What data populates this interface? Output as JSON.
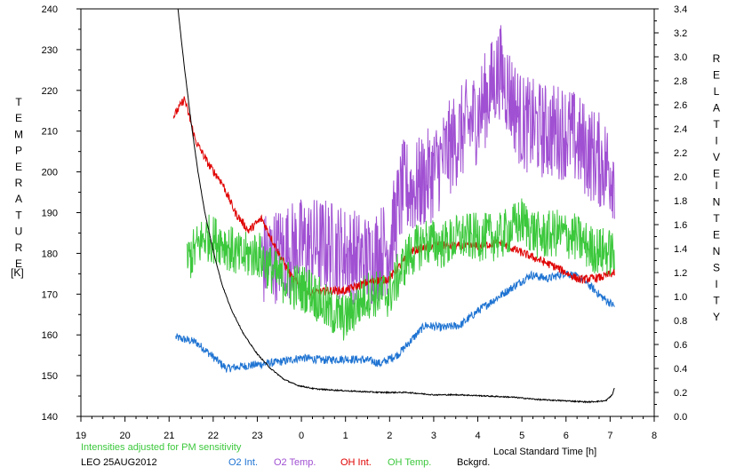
{
  "chart_data": {
    "type": "line",
    "xlabel": "Local Standard Time [h]",
    "ylabel_left": "TEMPERATURE",
    "ylabel_left_unit": "[K]",
    "ylabel_right": "RELATIVE INTENSITY",
    "x_ticks": [
      "19",
      "20",
      "21",
      "22",
      "23",
      "0",
      "1",
      "2",
      "3",
      "4",
      "5",
      "6",
      "7",
      "8"
    ],
    "xlim": [
      19,
      32
    ],
    "y_left_ticks": [
      "140",
      "150",
      "160",
      "170",
      "180",
      "190",
      "200",
      "210",
      "220",
      "230",
      "240"
    ],
    "ylim_left": [
      140,
      240
    ],
    "y_right_ticks": [
      "0.0",
      "0.2",
      "0.4",
      "0.6",
      "0.8",
      "1.0",
      "1.2",
      "1.4",
      "1.6",
      "1.8",
      "2.0",
      "2.2",
      "2.4",
      "2.6",
      "2.8",
      "3.0",
      "3.2",
      "3.4"
    ],
    "ylim_right": [
      0,
      3.4
    ],
    "note": "Intensities adjusted for PM sensitivity",
    "site_date": "LEO 25AUG2012",
    "legend_placement": "bottom",
    "series": [
      {
        "name": "O2 Int.",
        "axis": "right",
        "color": "#1e73d2",
        "noise": 0.035,
        "x": [
          21.15,
          21.6,
          21.8,
          22.3,
          22.7,
          23.2,
          23.6,
          24.0,
          24.5,
          25.0,
          25.5,
          25.8,
          26.2,
          26.5,
          26.8,
          27.2,
          27.6,
          28.0,
          28.4,
          28.8,
          29.2,
          29.6,
          30.0,
          30.4,
          30.8,
          31.1
        ],
        "y": [
          0.66,
          0.62,
          0.56,
          0.4,
          0.42,
          0.44,
          0.46,
          0.49,
          0.47,
          0.48,
          0.47,
          0.44,
          0.52,
          0.64,
          0.76,
          0.74,
          0.76,
          0.88,
          0.98,
          1.08,
          1.18,
          1.15,
          1.2,
          1.14,
          1.0,
          0.92
        ]
      },
      {
        "name": "O2 Temp.",
        "axis": "left",
        "color": "#a050d2",
        "noise": 12,
        "x": [
          23.1,
          23.5,
          24.0,
          24.5,
          25.0,
          25.5,
          26.0,
          26.3,
          26.6,
          27.0,
          27.5,
          28.0,
          28.5,
          29.0,
          29.5,
          30.0,
          30.5,
          31.1
        ],
        "y": [
          178,
          180,
          182,
          182,
          180,
          178,
          182,
          196,
          196,
          200,
          208,
          214,
          225,
          212,
          210,
          210,
          205,
          200
        ]
      },
      {
        "name": "OH Int.",
        "axis": "right",
        "color": "#e00000",
        "noise": 0.035,
        "x": [
          21.1,
          21.35,
          21.6,
          21.9,
          22.2,
          22.5,
          22.8,
          23.1,
          23.5,
          23.8,
          24.2,
          24.6,
          25.0,
          25.5,
          26.0,
          26.5,
          27.0,
          27.5,
          28.0,
          28.5,
          28.9,
          29.3,
          29.8,
          30.3,
          30.8,
          31.1
        ],
        "y": [
          2.5,
          2.65,
          2.3,
          2.1,
          1.95,
          1.7,
          1.55,
          1.65,
          1.35,
          1.15,
          1.02,
          1.05,
          1.05,
          1.12,
          1.15,
          1.38,
          1.43,
          1.42,
          1.42,
          1.45,
          1.38,
          1.32,
          1.24,
          1.14,
          1.16,
          1.2
        ]
      },
      {
        "name": "OH Temp.",
        "axis": "left",
        "color": "#3cc83c",
        "noise": 6,
        "x": [
          21.4,
          21.8,
          22.2,
          22.6,
          23.0,
          23.4,
          23.8,
          24.2,
          24.6,
          25.0,
          25.5,
          26.0,
          26.4,
          26.8,
          27.2,
          27.6,
          28.0,
          28.5,
          29.0,
          29.4,
          29.8,
          30.2,
          30.6,
          31.1
        ],
        "y": [
          178,
          184,
          183,
          179,
          180,
          175,
          172,
          171,
          166,
          164,
          170,
          170,
          179,
          183,
          182,
          184,
          184,
          184,
          188,
          184,
          185,
          184,
          181,
          180
        ]
      },
      {
        "name": "Bckgrd.",
        "axis": "right",
        "color": "#000000",
        "noise": 0.005,
        "x": [
          21.2,
          21.35,
          21.5,
          21.65,
          21.8,
          22.0,
          22.2,
          22.4,
          22.7,
          23.0,
          23.3,
          23.6,
          23.9,
          24.3,
          24.7,
          25.2,
          25.8,
          26.4,
          27.0,
          27.6,
          28.2,
          28.8,
          29.4,
          30.0,
          30.5,
          30.9,
          31.05,
          31.1
        ],
        "y": [
          3.4,
          2.9,
          2.45,
          2.05,
          1.72,
          1.38,
          1.1,
          0.9,
          0.68,
          0.52,
          0.4,
          0.31,
          0.26,
          0.23,
          0.22,
          0.21,
          0.2,
          0.2,
          0.18,
          0.18,
          0.17,
          0.16,
          0.14,
          0.13,
          0.12,
          0.13,
          0.18,
          0.24
        ]
      }
    ]
  }
}
